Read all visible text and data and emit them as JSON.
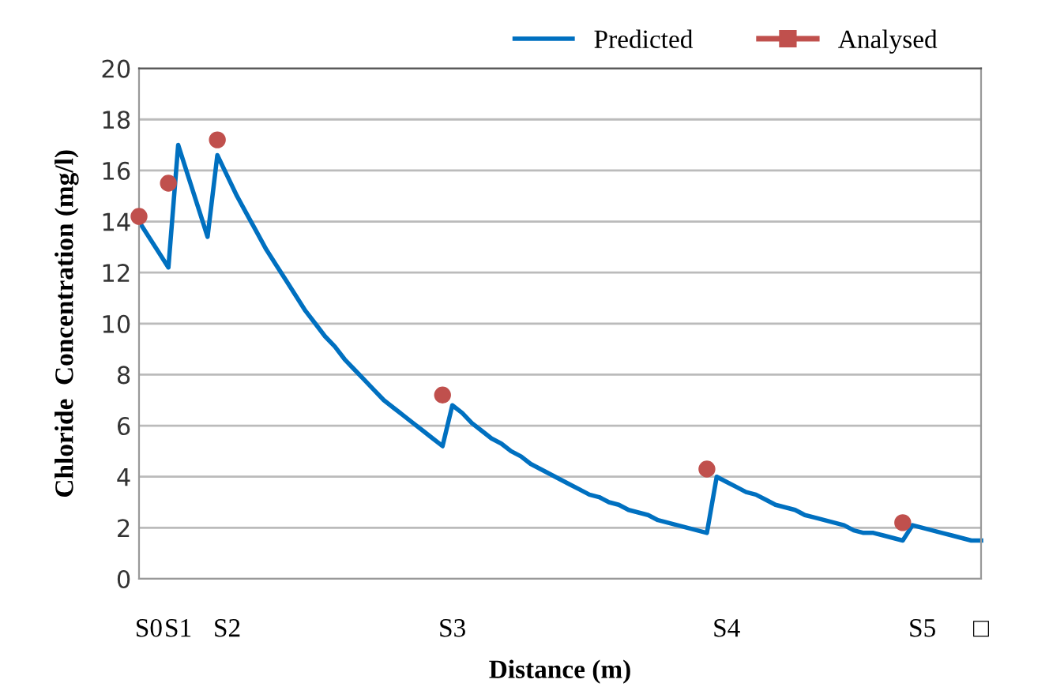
{
  "chart_data": {
    "type": "line",
    "xlabel": "Distance (m)",
    "ylabel": "Chloride  Concentration (mg/l)",
    "categories": [
      null,
      "S0",
      null,
      null,
      "S1",
      null,
      null,
      null,
      null,
      "S2",
      null,
      null,
      null,
      null,
      null,
      null,
      null,
      null,
      null,
      null,
      null,
      null,
      null,
      null,
      null,
      null,
      null,
      null,
      null,
      null,
      null,
      null,
      "S3",
      null,
      null,
      null,
      null,
      null,
      null,
      null,
      null,
      null,
      null,
      null,
      null,
      null,
      null,
      null,
      null,
      null,
      null,
      null,
      null,
      null,
      null,
      null,
      null,
      null,
      null,
      null,
      "S4",
      null,
      null,
      null,
      null,
      null,
      null,
      null,
      null,
      null,
      null,
      null,
      null,
      null,
      null,
      null,
      null,
      null,
      null,
      null,
      "S5",
      null,
      null,
      null,
      null,
      null,
      "□"
    ],
    "series": [
      {
        "name": "Predicted",
        "color": "#0070c0",
        "marker": "none",
        "values": [
          14.0,
          13.4,
          12.8,
          12.2,
          17.0,
          15.8,
          14.6,
          13.4,
          16.6,
          15.8,
          15.0,
          14.3,
          13.6,
          12.9,
          12.3,
          11.7,
          11.1,
          10.5,
          10.0,
          9.5,
          9.1,
          8.6,
          8.2,
          7.8,
          7.4,
          7.0,
          6.7,
          6.4,
          6.1,
          5.8,
          5.5,
          5.2,
          6.8,
          6.5,
          6.1,
          5.8,
          5.5,
          5.3,
          5.0,
          4.8,
          4.5,
          4.3,
          4.1,
          3.9,
          3.7,
          3.5,
          3.3,
          3.2,
          3.0,
          2.9,
          2.7,
          2.6,
          2.5,
          2.3,
          2.2,
          2.1,
          2.0,
          1.9,
          1.8,
          4.0,
          3.8,
          3.6,
          3.4,
          3.3,
          3.1,
          2.9,
          2.8,
          2.7,
          2.5,
          2.4,
          2.3,
          2.2,
          2.1,
          1.9,
          1.8,
          1.8,
          1.7,
          1.6,
          1.5,
          2.1,
          2.0,
          1.9,
          1.8,
          1.7,
          1.6,
          1.5,
          1.5
        ]
      },
      {
        "name": "Analysed",
        "type": "scatter",
        "color": "#c0504d",
        "marker": "circle",
        "values": [
          14.2,
          null,
          null,
          15.5,
          null,
          null,
          null,
          null,
          17.2,
          null,
          null,
          null,
          null,
          null,
          null,
          null,
          null,
          null,
          null,
          null,
          null,
          null,
          null,
          null,
          null,
          null,
          null,
          null,
          null,
          null,
          null,
          7.2,
          null,
          null,
          null,
          null,
          null,
          null,
          null,
          null,
          null,
          null,
          null,
          null,
          null,
          null,
          null,
          null,
          null,
          null,
          null,
          null,
          null,
          null,
          null,
          null,
          null,
          null,
          4.3,
          null,
          null,
          null,
          null,
          null,
          null,
          null,
          null,
          null,
          null,
          null,
          null,
          null,
          null,
          null,
          null,
          null,
          null,
          null,
          2.2,
          null,
          null,
          null,
          null,
          null,
          null,
          null,
          null
        ]
      }
    ],
    "ylim": [
      0,
      20
    ],
    "yticks": [
      0,
      2,
      4,
      6,
      8,
      10,
      12,
      14,
      16,
      18,
      20
    ],
    "grid": "y",
    "legend": "top right"
  }
}
